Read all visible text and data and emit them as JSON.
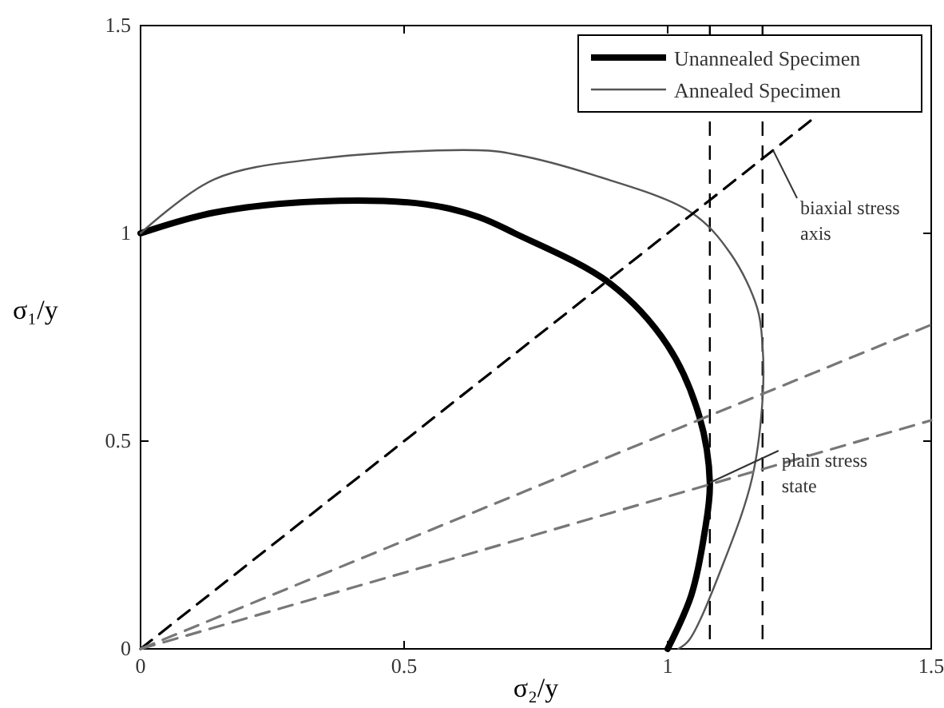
{
  "chart_data": {
    "type": "line",
    "xlabel": "σ₂/y",
    "ylabel": "σ₁/y",
    "xlim": [
      0,
      1.5
    ],
    "ylim": [
      0,
      1.5
    ],
    "xticks": [
      0,
      0.5,
      1,
      {
        "value": 1.5,
        "label": "1.5"
      }
    ],
    "yticks": [
      0,
      0.5,
      1,
      1.5
    ],
    "legend": "top right",
    "grid": false,
    "series": [
      {
        "name": "Unannealed Specimen",
        "color": "#000000",
        "x": [
          0,
          0.14,
          0.34,
          0.54,
          0.64,
          0.71,
          0.89,
          1.0,
          1.06,
          1.08,
          1.07,
          1.045,
          1.0
        ],
        "values": [
          1,
          1.05,
          1.077,
          1.07,
          1.04,
          1.0,
          0.88,
          0.73,
          0.56,
          0.4,
          0.28,
          0.13,
          0
        ]
      },
      {
        "name": "Annealed Specimen",
        "color": "#555555",
        "x": [
          0,
          0.14,
          0.34,
          0.64,
          0.71,
          0.86,
          1.045,
          1.12,
          1.17,
          1.18,
          1.18,
          1.16,
          1.11,
          1.04,
          1.02
        ],
        "values": [
          1,
          1.13,
          1.18,
          1.2,
          1.19,
          1.14,
          1.05,
          0.95,
          0.82,
          0.73,
          0.6,
          0.41,
          0.22,
          0.02,
          0
        ]
      },
      {
        "type": "line",
        "line_style": "dashed",
        "color": "#000000",
        "x": [
          0,
          1.28
        ],
        "values": [
          0,
          1.28
        ]
      },
      {
        "type": "line",
        "line_style": "dashed",
        "color": "#777777",
        "x": [
          0,
          1.5
        ],
        "values": [
          0,
          0.78
        ]
      },
      {
        "type": "line",
        "line_style": "dashed",
        "color": "#777777",
        "x": [
          0,
          1.5
        ],
        "values": [
          0,
          0.55
        ]
      }
    ],
    "ref_lines": [
      {
        "axis": "x",
        "value": 1.08,
        "line_style": "dashed",
        "color": "#000000"
      },
      {
        "axis": "x",
        "value": 1.18,
        "line_style": "dashed",
        "color": "#000000"
      }
    ],
    "annotations": [
      {
        "text": "biaxial stress axis",
        "x": 1.2,
        "y": 1.2
      },
      {
        "text": "plain stress state",
        "x": 1.08,
        "y": 0.4
      }
    ]
  }
}
